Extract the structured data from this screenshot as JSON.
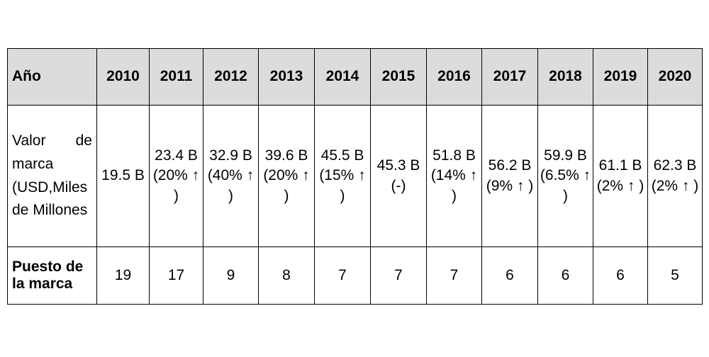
{
  "table": {
    "header_label": "Año",
    "years": [
      "2010",
      "2011",
      "2012",
      "2013",
      "2014",
      "2015",
      "2016",
      "2017",
      "2018",
      "2019",
      "2020"
    ],
    "value_label": "Valor de marca (USD,Miles de Millones",
    "values": [
      "19.5 B",
      "23.4 B (20% ↑ )",
      "32.9 B (40% ↑ )",
      "39.6 B (20% ↑ )",
      "45.5 B (15% ↑ )",
      "45.3 B (-)",
      "51.8 B (14% ↑ )",
      "56.2 B (9% ↑ )",
      "59.9 B (6.5% ↑ )",
      "61.1 B (2% ↑ )",
      "62.3 B (2% ↑ )"
    ],
    "rank_label": "Puesto de la marca",
    "ranks": [
      "19",
      "17",
      "9",
      "8",
      "7",
      "7",
      "7",
      "6",
      "6",
      "6",
      "5"
    ]
  }
}
